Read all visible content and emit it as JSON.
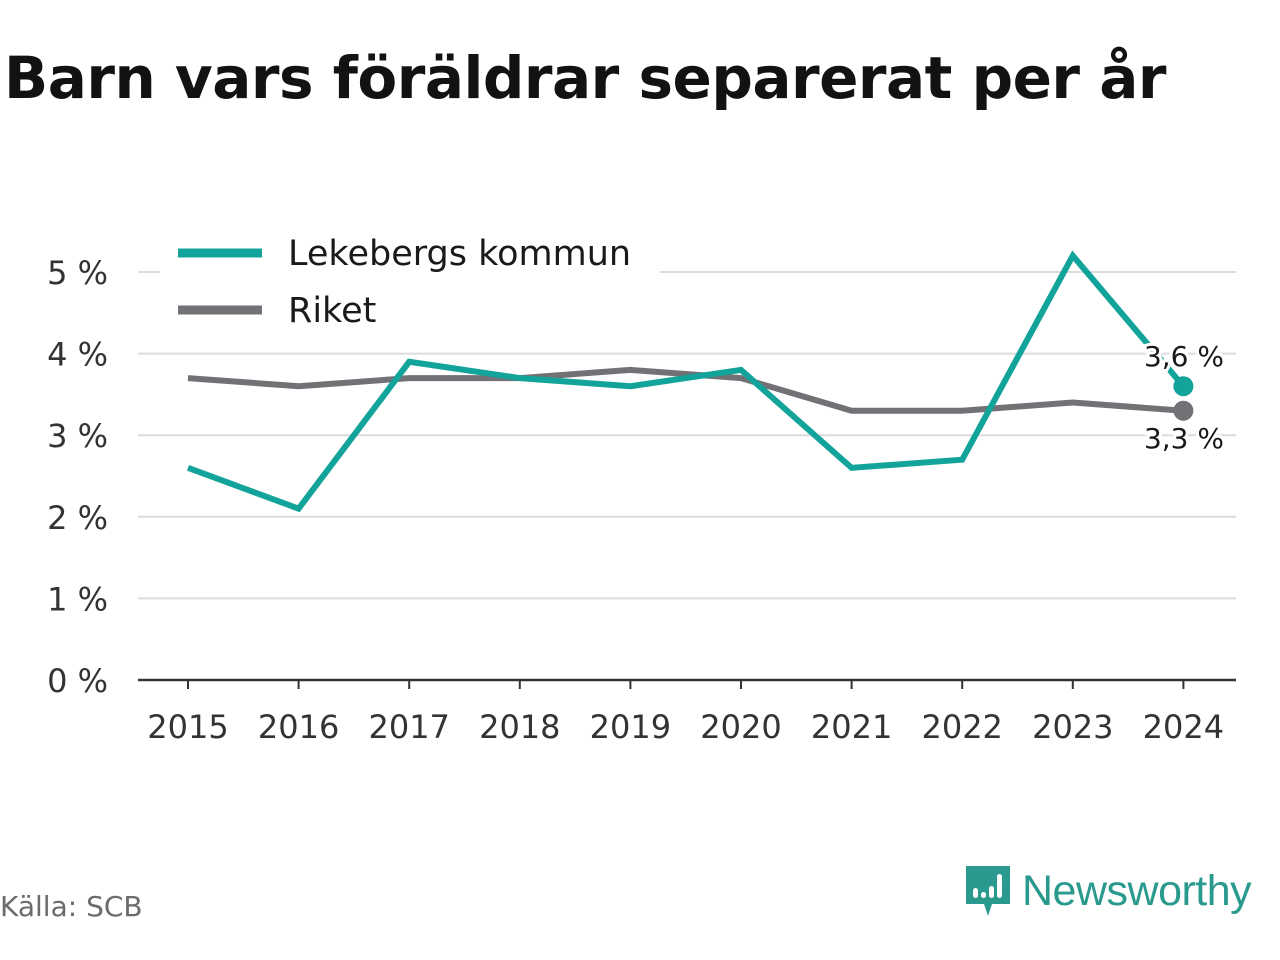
{
  "title": "Barn vars föräldrar separerat per år",
  "source": "Källa: SCB",
  "brand": {
    "name": "Newsworthy",
    "icon": "newsworthy-logo-icon",
    "color": "#2b9a8e"
  },
  "chart_data": {
    "type": "line",
    "x": [
      "2015",
      "2016",
      "2017",
      "2018",
      "2019",
      "2020",
      "2021",
      "2022",
      "2023",
      "2024"
    ],
    "yticks": [
      "0 %",
      "1 %",
      "2 %",
      "3 %",
      "4 %",
      "5 %"
    ],
    "ylim": [
      0,
      5.5
    ],
    "grid": true,
    "legend_position": "top-left",
    "series": [
      {
        "name": "Lekebergs kommun",
        "color": "#12a39a",
        "values": [
          2.6,
          2.1,
          3.9,
          3.7,
          3.6,
          3.8,
          2.6,
          2.7,
          5.2,
          3.6
        ],
        "end_label": "3,6 %"
      },
      {
        "name": "Riket",
        "color": "#727176",
        "values": [
          3.7,
          3.6,
          3.7,
          3.7,
          3.8,
          3.7,
          3.3,
          3.3,
          3.4,
          3.3
        ],
        "end_label": "3,3 %"
      }
    ]
  }
}
